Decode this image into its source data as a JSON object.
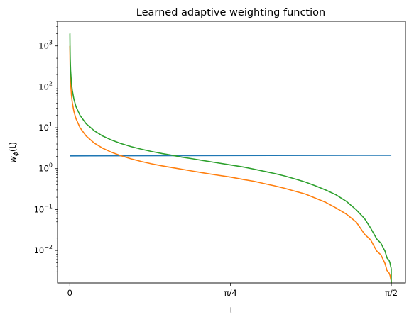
{
  "chart_data": {
    "type": "line",
    "title": "Learned adaptive weighting function",
    "xlabel": "t",
    "ylabel": "w_ϕ(t)",
    "ylabel_parts": {
      "base": "w",
      "sub": "ϕ",
      "rest": "(t)"
    },
    "yscale": "log",
    "xlim": [
      -0.06,
      1.64
    ],
    "ylim": [
      0.0016,
      4000
    ],
    "grid": false,
    "legend": "none",
    "x_ticks": [
      {
        "value": 0,
        "label": "0"
      },
      {
        "value": 0.7854,
        "label": "π/4"
      },
      {
        "value": 1.5708,
        "label": "π/2"
      }
    ],
    "y_ticks": [
      {
        "value": 0.01,
        "base": "10",
        "exp": "−2"
      },
      {
        "value": 0.1,
        "base": "10",
        "exp": "−1"
      },
      {
        "value": 1,
        "base": "10",
        "exp": "0"
      },
      {
        "value": 10,
        "base": "10",
        "exp": "1"
      },
      {
        "value": 100,
        "base": "10",
        "exp": "2"
      },
      {
        "value": 1000,
        "base": "10",
        "exp": "3"
      }
    ],
    "series": [
      {
        "color": "#1f77b4",
        "x": [
          0,
          1.5708
        ],
        "y": [
          2.05,
          2.12
        ]
      },
      {
        "color": "#ff7f0e",
        "x": [
          0,
          0.0005,
          0.001,
          0.002,
          0.004,
          0.008,
          0.012,
          0.02,
          0.03,
          0.05,
          0.08,
          0.12,
          0.16,
          0.2,
          0.25,
          0.3,
          0.35,
          0.4,
          0.45,
          0.5,
          0.55,
          0.6,
          0.65,
          0.7,
          0.7854,
          0.85,
          0.9,
          0.95,
          1.0,
          1.05,
          1.1,
          1.15,
          1.2,
          1.25,
          1.3,
          1.35,
          1.4,
          1.44,
          1.47,
          1.5,
          1.52,
          1.54,
          1.55,
          1.56,
          1.565,
          1.568,
          1.5705
        ],
        "y": [
          1000,
          1000,
          500,
          250,
          125,
          62.5,
          41.7,
          25,
          16.7,
          10,
          6.27,
          4.2,
          3.17,
          2.56,
          2.06,
          1.73,
          1.49,
          1.31,
          1.17,
          1.06,
          0.96,
          0.87,
          0.79,
          0.72,
          0.62,
          0.54,
          0.49,
          0.43,
          0.38,
          0.33,
          0.28,
          0.24,
          0.19,
          0.15,
          0.11,
          0.078,
          0.049,
          0.025,
          0.018,
          0.0096,
          0.0078,
          0.0048,
          0.0032,
          0.0028,
          0.0024,
          0.002,
          0.0018
        ]
      },
      {
        "color": "#2ca02c",
        "x": [
          0,
          0.0005,
          0.001,
          0.002,
          0.004,
          0.008,
          0.012,
          0.02,
          0.03,
          0.05,
          0.08,
          0.12,
          0.16,
          0.2,
          0.25,
          0.3,
          0.35,
          0.4,
          0.45,
          0.5,
          0.55,
          0.6,
          0.65,
          0.7,
          0.7854,
          0.85,
          0.9,
          0.95,
          1.0,
          1.05,
          1.1,
          1.15,
          1.2,
          1.25,
          1.3,
          1.35,
          1.4,
          1.44,
          1.47,
          1.5,
          1.52,
          1.54,
          1.55,
          1.56,
          1.565,
          1.568,
          1.5705
        ],
        "y": [
          2000,
          2000,
          1000,
          500,
          250,
          125,
          83,
          50,
          33,
          20,
          12.5,
          8.4,
          6.3,
          5.1,
          4.1,
          3.45,
          2.98,
          2.62,
          2.34,
          2.12,
          1.9,
          1.74,
          1.58,
          1.44,
          1.23,
          1.09,
          0.97,
          0.86,
          0.76,
          0.66,
          0.56,
          0.47,
          0.38,
          0.3,
          0.23,
          0.16,
          0.098,
          0.06,
          0.035,
          0.019,
          0.015,
          0.0096,
          0.0065,
          0.0057,
          0.0048,
          0.004,
          0.0036
        ]
      }
    ]
  }
}
